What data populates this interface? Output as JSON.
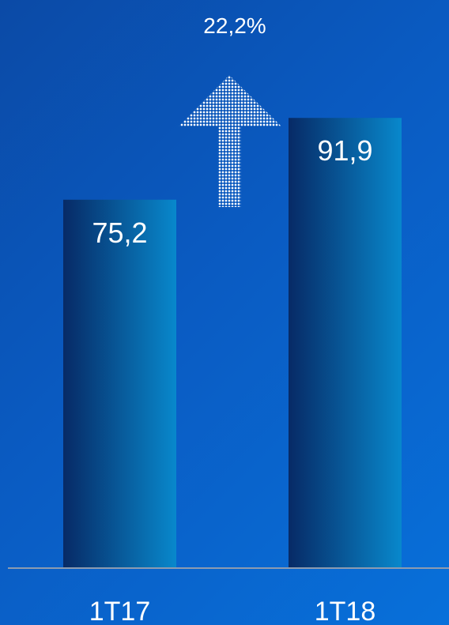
{
  "chart_data": {
    "type": "bar",
    "categories": [
      "1T17",
      "1T18"
    ],
    "values": [
      75.2,
      91.9
    ],
    "value_labels": [
      "75,2",
      "91,9"
    ],
    "annotation": "22,2%",
    "annotation_icon": "dotted-up-arrow-icon",
    "ylim": [
      0,
      100
    ],
    "grid": false,
    "legend": "none"
  },
  "colors": {
    "background": "#0a5bc2",
    "bar_dark": "#072a66",
    "bar_light": "#0888cc",
    "baseline": "#8c9bb0",
    "text": "#ffffff",
    "arrow": "#ffffff"
  }
}
